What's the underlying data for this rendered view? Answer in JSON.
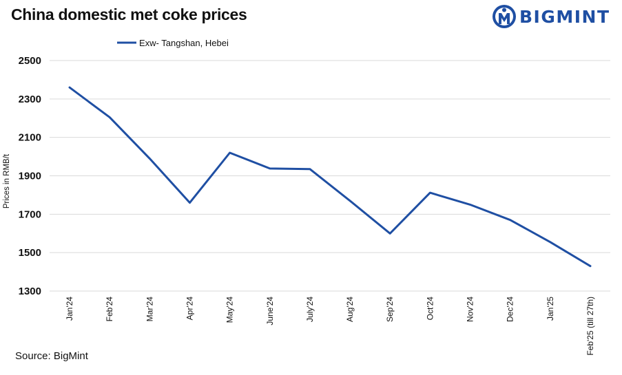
{
  "title": "China domestic met coke prices",
  "logo": {
    "text": "BIGMINT",
    "color": "#1f4fa3"
  },
  "source": "Source: BigMint",
  "chart_data": {
    "type": "line",
    "title": "China domestic met coke prices",
    "xlabel": "",
    "ylabel": "Prices in RMB/t",
    "ylim": [
      1300,
      2500
    ],
    "yticks": [
      1300,
      1500,
      1700,
      1900,
      2100,
      2300,
      2500
    ],
    "grid": true,
    "legend": "top-left",
    "categories": [
      "Jan'24",
      "Feb'24",
      "Mar'24",
      "Apr'24",
      "May'24",
      "June'24",
      "July'24",
      "Aug'24",
      "Sep'24",
      "Oct'24",
      "Nov'24",
      "Dec'24",
      "Jan'25",
      "Feb'25 (till 27th)"
    ],
    "series": [
      {
        "name": "Exw- Tangshan, Hebei",
        "color": "#1f4fa3",
        "values": [
          2360,
          2205,
          1990,
          1760,
          2020,
          1938,
          1935,
          1770,
          1600,
          1812,
          1750,
          1670,
          1555,
          1430
        ]
      }
    ]
  }
}
